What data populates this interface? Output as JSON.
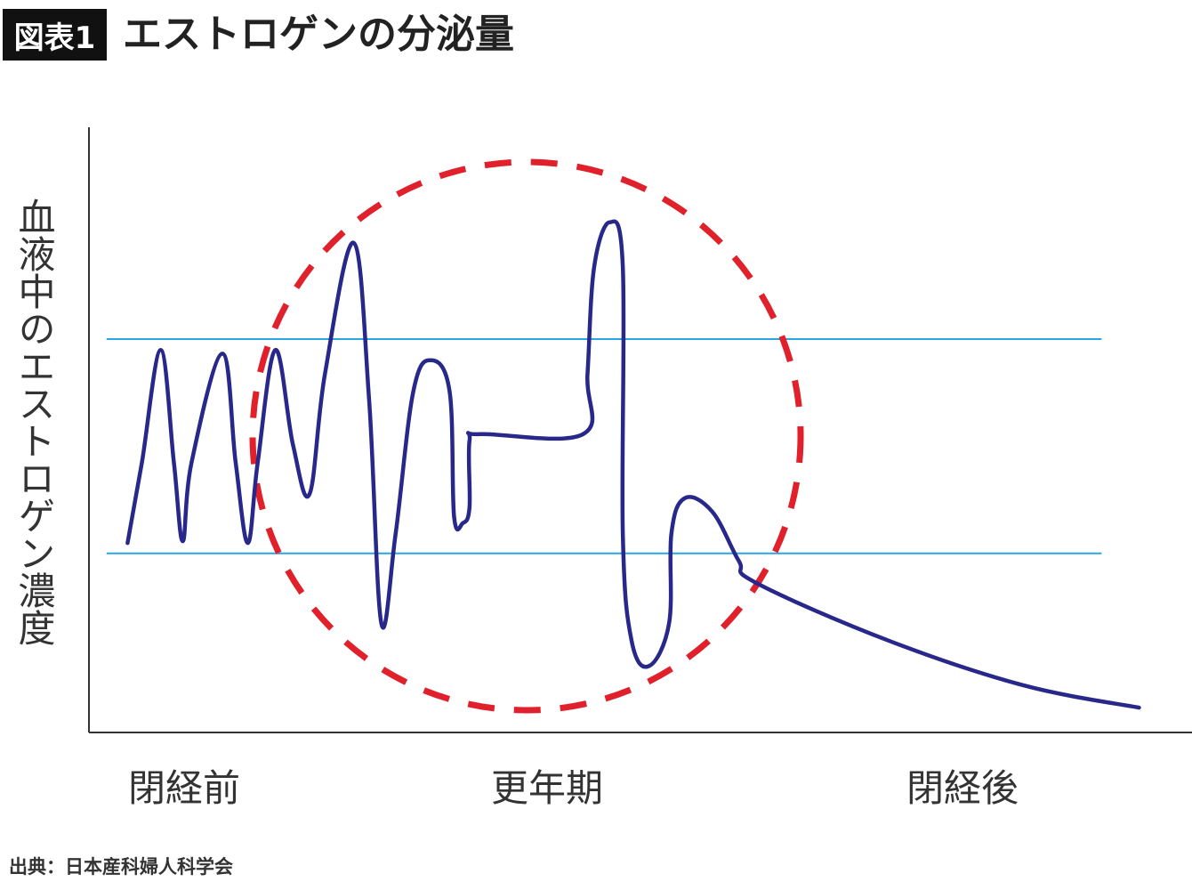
{
  "header": {
    "badge": "図表1",
    "title": "エストロゲンの分泌量"
  },
  "source": "出典：日本産科婦人科学会",
  "colors": {
    "curve": "#27288a",
    "threshold": "#2aa5e3",
    "circle": "#e0202a",
    "axis": "#333333"
  },
  "chart_data": {
    "type": "line",
    "title": "エストロゲンの分泌量",
    "ylabel": "血液中のエストロゲン濃度",
    "xlabel": "",
    "x_categories": [
      "閉経前",
      "更年期",
      "閉経後"
    ],
    "xlim": [
      0,
      100
    ],
    "ylim": [
      0,
      100
    ],
    "grid": false,
    "reference_lines": [
      {
        "name": "upper-range",
        "y": 65.0,
        "x_range": [
          1.6,
          91.8
        ]
      },
      {
        "name": "lower-range",
        "y": 29.6,
        "x_range": [
          1.6,
          91.8
        ]
      }
    ],
    "annotation": {
      "type": "dashed-circle",
      "highlights": "更年期"
    },
    "series": [
      {
        "name": "estrogen",
        "points": [
          [
            3.5,
            31.3
          ],
          [
            4.8,
            44.6
          ],
          [
            6.5,
            63.2
          ],
          [
            7.7,
            44.6
          ],
          [
            8.5,
            31.6
          ],
          [
            9.3,
            44.6
          ],
          [
            12.1,
            62.6
          ],
          [
            13.3,
            44.6
          ],
          [
            14.4,
            31.3
          ],
          [
            15.3,
            44.6
          ],
          [
            16.9,
            63.2
          ],
          [
            18.5,
            47.5
          ],
          [
            20.0,
            39.4
          ],
          [
            21.4,
            59.3
          ],
          [
            24.0,
            80.9
          ],
          [
            25.4,
            54.9
          ],
          [
            26.5,
            18.1
          ],
          [
            27.8,
            32.8
          ],
          [
            29.4,
            56.3
          ],
          [
            31.0,
            61.5
          ],
          [
            32.7,
            56.3
          ],
          [
            33.1,
            35.7
          ],
          [
            33.9,
            34.6
          ],
          [
            34.5,
            37.2
          ],
          [
            34.5,
            48.2
          ],
          [
            35.5,
            49.3
          ],
          [
            44.8,
            49.3
          ],
          [
            45.2,
            59.3
          ],
          [
            45.8,
            76.9
          ],
          [
            47.2,
            84.3
          ],
          [
            48.4,
            76.9
          ],
          [
            48.4,
            32.8
          ],
          [
            49.2,
            15.1
          ],
          [
            50.8,
            11.0
          ],
          [
            52.6,
            18.1
          ],
          [
            52.8,
            32.8
          ],
          [
            54.0,
            38.7
          ],
          [
            56.5,
            36.5
          ],
          [
            58.9,
            28.4
          ],
          [
            60.5,
            24.7
          ],
          [
            72.6,
            15.1
          ],
          [
            84.7,
            7.8
          ],
          [
            95.2,
            4.1
          ]
        ]
      }
    ]
  }
}
